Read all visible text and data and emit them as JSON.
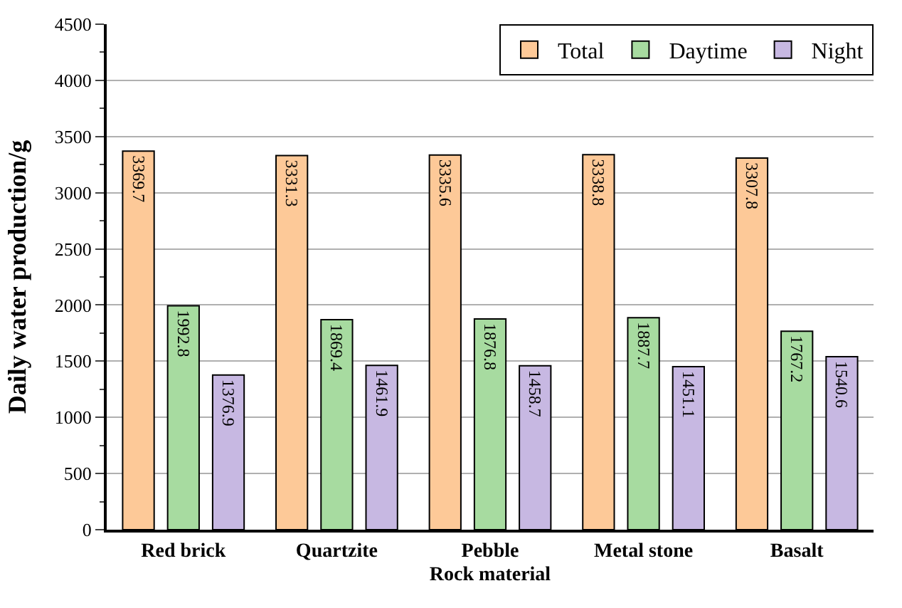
{
  "chart_data": {
    "type": "bar",
    "xlabel": "Rock material",
    "ylabel": "Daily water production/g",
    "categories": [
      "Red brick",
      "Quartzite",
      "Pebble",
      "Metal stone",
      "Basalt"
    ],
    "series": [
      {
        "name": "Total",
        "color": "#fdc998",
        "values": [
          3369.7,
          3331.3,
          3335.6,
          3338.8,
          3307.8
        ]
      },
      {
        "name": "Daytime",
        "color": "#a7dba0",
        "values": [
          1992.8,
          1869.4,
          1876.8,
          1887.7,
          1767.2
        ]
      },
      {
        "name": "Night",
        "color": "#c7b8e2",
        "values": [
          1376.9,
          1461.9,
          1458.7,
          1451.1,
          1540.6
        ]
      }
    ],
    "ylim": [
      0,
      4500
    ],
    "yticks": [
      0,
      500,
      1000,
      1500,
      2000,
      2500,
      3000,
      3500,
      4000,
      4500
    ],
    "grid": "y",
    "legend": "top right",
    "data_labels": true
  }
}
